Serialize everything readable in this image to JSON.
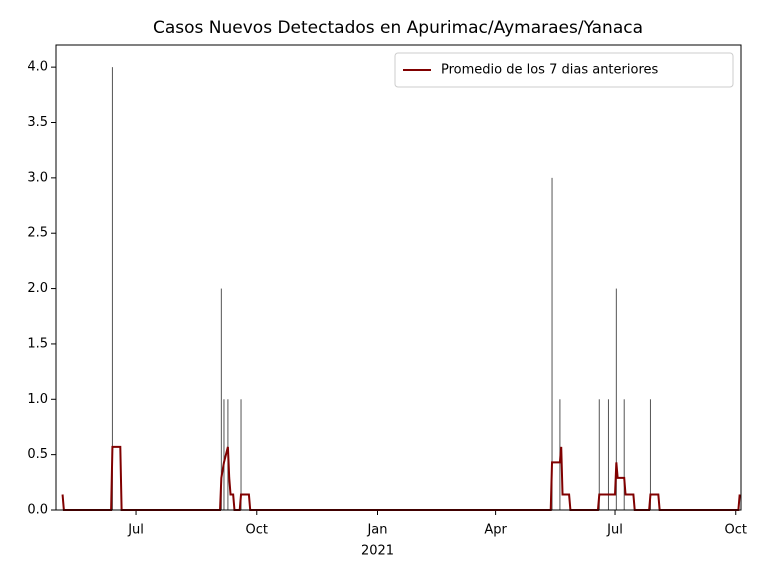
{
  "chart_data": {
    "type": "bar-line",
    "title": "Casos Nuevos Detectados en Apurimac/Aymaraes/Yanaca",
    "xlim": [
      0,
      522
    ],
    "ylim": [
      0,
      4.2
    ],
    "xticks": [
      {
        "value": 61,
        "label": "Jul"
      },
      {
        "value": 153,
        "label": "Oct"
      },
      {
        "value": 245,
        "label": "Jan"
      },
      {
        "value": 335,
        "label": "Apr"
      },
      {
        "value": 426,
        "label": "Jul"
      },
      {
        "value": 518,
        "label": "Oct"
      }
    ],
    "xtick_year": {
      "value": 245,
      "label": "2021"
    },
    "yticks": [
      {
        "value": 0,
        "label": "0.0"
      },
      {
        "value": 0.5,
        "label": "0.5"
      },
      {
        "value": 1,
        "label": "1.0"
      },
      {
        "value": 1.5,
        "label": "1.5"
      },
      {
        "value": 2,
        "label": "2.0"
      },
      {
        "value": 2.5,
        "label": "2.5"
      },
      {
        "value": 3,
        "label": "3.0"
      },
      {
        "value": 3.5,
        "label": "3.5"
      },
      {
        "value": 4,
        "label": "4.0"
      }
    ],
    "legend_position": "upper right",
    "series": [
      {
        "kind": "bar",
        "color": "#555555",
        "x": [
          43,
          126,
          128,
          131,
          141,
          378,
          384,
          414,
          421,
          427,
          433,
          453
        ],
        "values": [
          4,
          2,
          1,
          1,
          1,
          3,
          1,
          1,
          1,
          2,
          1,
          1
        ]
      },
      {
        "kind": "line",
        "name": "Promedio de los 7 dias anteriores",
        "color": "#800000",
        "x": [
          5,
          6,
          42,
          43,
          49,
          50,
          125,
          126,
          128,
          131,
          132,
          133,
          135,
          136,
          140,
          141,
          147,
          148,
          377,
          378,
          384,
          385,
          386,
          391,
          392,
          413,
          414,
          426,
          427,
          428,
          433,
          434,
          440,
          441,
          452,
          453,
          459,
          460,
          520,
          521
        ],
        "values": [
          0.14,
          0,
          0,
          0.57,
          0.57,
          0,
          0,
          0.29,
          0.43,
          0.57,
          0.29,
          0.14,
          0.14,
          0,
          0,
          0.14,
          0.14,
          0,
          0,
          0.43,
          0.43,
          0.57,
          0.14,
          0.14,
          0,
          0,
          0.14,
          0.14,
          0.43,
          0.29,
          0.29,
          0.14,
          0.14,
          0,
          0,
          0.14,
          0.14,
          0,
          0,
          0.14
        ]
      }
    ]
  }
}
